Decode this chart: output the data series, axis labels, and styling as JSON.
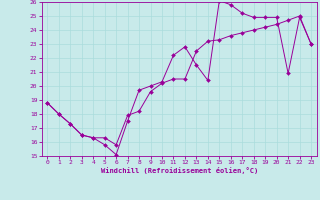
{
  "xlabel": "Windchill (Refroidissement éolien,°C)",
  "background_color": "#c8eaea",
  "line_color": "#990099",
  "grid_color": "#aadddd",
  "xlim": [
    -0.5,
    23.5
  ],
  "ylim": [
    15,
    26
  ],
  "xticks": [
    0,
    1,
    2,
    3,
    4,
    5,
    6,
    7,
    8,
    9,
    10,
    11,
    12,
    13,
    14,
    15,
    16,
    17,
    18,
    19,
    20,
    21,
    22,
    23
  ],
  "yticks": [
    15,
    16,
    17,
    18,
    19,
    20,
    21,
    22,
    23,
    24,
    25,
    26
  ],
  "line1_x": [
    0,
    1,
    2,
    3,
    4,
    5,
    6,
    7,
    8,
    9,
    10,
    11,
    12,
    13,
    14,
    15,
    16,
    17,
    18,
    19,
    20,
    21,
    22,
    23
  ],
  "line1_y": [
    18.8,
    18.0,
    17.3,
    16.5,
    16.3,
    15.8,
    15.1,
    17.5,
    19.7,
    20.0,
    20.3,
    22.2,
    22.8,
    21.5,
    20.4,
    26.1,
    25.8,
    25.2,
    24.9,
    24.9,
    24.9,
    20.9,
    24.9,
    23.0
  ],
  "line2_x": [
    0,
    1,
    2,
    3,
    4,
    5,
    6,
    7,
    8,
    9,
    10,
    11,
    12,
    13,
    14,
    15,
    16,
    17,
    18,
    19,
    20,
    21,
    22,
    23
  ],
  "line2_y": [
    18.8,
    18.0,
    17.3,
    16.5,
    16.3,
    16.3,
    15.8,
    17.9,
    18.2,
    19.6,
    20.2,
    20.5,
    20.5,
    22.5,
    23.2,
    23.3,
    23.6,
    23.8,
    24.0,
    24.2,
    24.4,
    24.7,
    25.0,
    23.0
  ]
}
